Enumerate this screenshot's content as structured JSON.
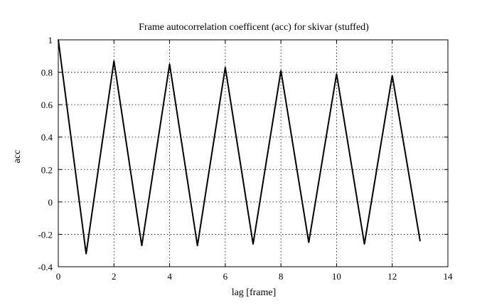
{
  "chart_data": {
    "type": "line",
    "title": "Frame autocorrelation coefficent (acc) for skivar (stuffed)",
    "xlabel": "lag [frame]",
    "ylabel": "acc",
    "xlim": [
      0,
      14
    ],
    "ylim": [
      -0.4,
      1
    ],
    "xticks": [
      0,
      2,
      4,
      6,
      8,
      10,
      12,
      14
    ],
    "yticks": [
      -0.4,
      -0.2,
      0,
      0.2,
      0.4,
      0.6,
      0.8,
      1
    ],
    "xtick_labels": [
      "0",
      "2",
      "4",
      "6",
      "8",
      "10",
      "12",
      "14"
    ],
    "ytick_labels": [
      "-0.4",
      "-0.2",
      "0",
      "0.2",
      "0.4",
      "0.6",
      "0.8",
      "1"
    ],
    "grid": true,
    "series": [
      {
        "x": [
          0,
          1,
          2,
          3,
          4,
          5,
          6,
          7,
          8,
          9,
          10,
          11,
          12,
          13
        ],
        "values": [
          1.0,
          -0.32,
          0.87,
          -0.27,
          0.85,
          -0.27,
          0.83,
          -0.26,
          0.81,
          -0.25,
          0.79,
          -0.26,
          0.78,
          -0.24
        ],
        "color": "#000000"
      }
    ]
  }
}
